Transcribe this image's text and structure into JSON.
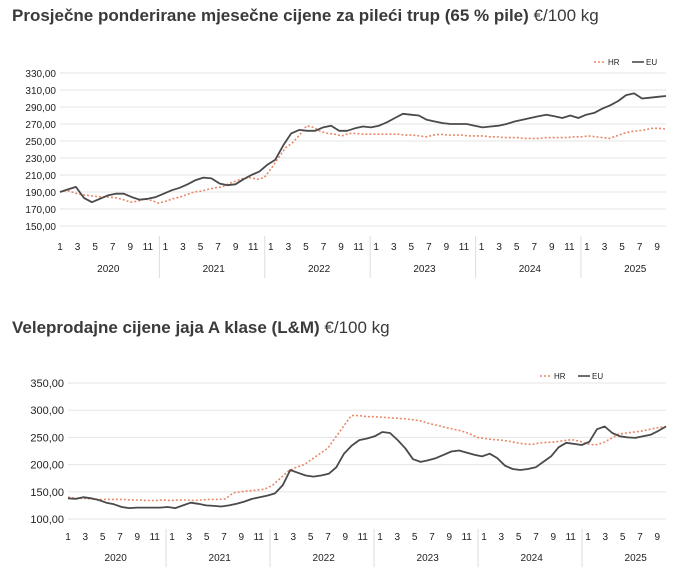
{
  "charts_meta": [
    {
      "title_bold": "Prosječne ponderirane mjesečne cijene za pileći trup (65 % pile)",
      "title_unit": "€/100 kg"
    },
    {
      "title_bold": "Veleprodajne cijene jaja A klase (L&M)",
      "title_unit": "€/100 kg"
    }
  ],
  "colors": {
    "hr": "#e8896a",
    "eu": "#4a4a4a",
    "grid": "#e6e6e6"
  },
  "chart_data": [
    {
      "type": "line",
      "title": "Prosječne ponderirane mjesečne cijene za pileći trup (65 % pile) €/100 kg",
      "ylim": [
        150,
        330
      ],
      "yticks": [
        "150,00",
        "170,00",
        "190,00",
        "210,00",
        "230,00",
        "250,00",
        "270,00",
        "290,00",
        "310,00",
        "330,00"
      ],
      "month_ticks": [
        "1",
        "3",
        "5",
        "7",
        "9",
        "11",
        "1",
        "3",
        "5",
        "7",
        "9",
        "11",
        "1",
        "3",
        "5",
        "7",
        "9",
        "11",
        "1",
        "3",
        "5",
        "7",
        "9",
        "11",
        "1",
        "3",
        "5",
        "7",
        "9",
        "11",
        "1",
        "3",
        "5",
        "7",
        "9"
      ],
      "years": [
        "2020",
        "2021",
        "2022",
        "2023",
        "2024",
        "2025"
      ],
      "legend": [
        "HR",
        "EU"
      ],
      "legend_position": "top-right",
      "series": [
        {
          "name": "HR",
          "style": "dotted",
          "values": [
            190,
            192,
            189,
            187,
            186,
            185,
            184,
            184,
            183,
            181,
            178,
            179,
            182,
            180,
            177,
            179,
            182,
            184,
            187,
            190,
            191,
            193,
            195,
            196,
            200,
            203,
            206,
            207,
            205,
            207,
            218,
            230,
            242,
            248,
            257,
            268,
            266,
            261,
            259,
            258,
            256,
            259,
            259,
            258,
            258,
            258,
            258,
            258,
            258,
            257,
            257,
            256,
            255,
            257,
            258,
            257,
            257,
            257,
            256,
            256,
            256,
            255,
            255,
            254,
            254,
            254,
            253,
            253,
            253,
            254,
            254,
            254,
            254,
            255,
            255,
            256,
            255,
            254,
            253,
            256,
            259,
            261,
            262,
            263,
            265,
            265,
            264
          ]
        },
        {
          "name": "EU",
          "style": "solid",
          "values": [
            190,
            193,
            196,
            183,
            178,
            182,
            186,
            188,
            188,
            184,
            181,
            182,
            184,
            188,
            192,
            195,
            199,
            204,
            207,
            206,
            200,
            198,
            199,
            205,
            210,
            214,
            222,
            228,
            245,
            259,
            263,
            262,
            262,
            266,
            268,
            262,
            262,
            265,
            267,
            266,
            268,
            272,
            277,
            282,
            281,
            280,
            275,
            273,
            271,
            270,
            270,
            270,
            268,
            266,
            267,
            268,
            270,
            273,
            275,
            277,
            279,
            281,
            279,
            277,
            280,
            277,
            281,
            283,
            288,
            292,
            297,
            304,
            306,
            300,
            301,
            302,
            303
          ]
        }
      ]
    },
    {
      "type": "line",
      "title": "Veleprodajne cijene jaja A klase (L&M) €/100 kg",
      "ylim": [
        100,
        350
      ],
      "yticks": [
        "100,00",
        "150,00",
        "200,00",
        "250,00",
        "300,00",
        "350,00"
      ],
      "month_ticks": [
        "1",
        "3",
        "5",
        "7",
        "9",
        "11",
        "1",
        "3",
        "5",
        "7",
        "9",
        "11",
        "1",
        "3",
        "5",
        "7",
        "9",
        "11",
        "1",
        "3",
        "5",
        "7",
        "9",
        "11",
        "1",
        "3",
        "5",
        "7",
        "9",
        "11",
        "1",
        "3",
        "5",
        "7",
        "9"
      ],
      "years": [
        "2020",
        "2021",
        "2022",
        "2023",
        "2024",
        "2025"
      ],
      "legend": [
        "HR",
        "EU"
      ],
      "legend_position": "top-right",
      "series": [
        {
          "name": "HR",
          "style": "dotted",
          "values": [
            140,
            138,
            138,
            137,
            136,
            136,
            136,
            136,
            135,
            135,
            134,
            134,
            135,
            134,
            135,
            135,
            134,
            135,
            136,
            136,
            137,
            148,
            150,
            152,
            153,
            155,
            162,
            175,
            188,
            195,
            200,
            210,
            220,
            230,
            250,
            270,
            290,
            290,
            288,
            288,
            287,
            286,
            285,
            284,
            282,
            280,
            275,
            272,
            268,
            265,
            262,
            257,
            250,
            248,
            246,
            245,
            243,
            240,
            238,
            237,
            240,
            241,
            242,
            244,
            246,
            243,
            238,
            236,
            240,
            248,
            256,
            258,
            260,
            262,
            265,
            268,
            270
          ]
        },
        {
          "name": "EU",
          "style": "solid",
          "values": [
            138,
            137,
            140,
            138,
            135,
            130,
            127,
            122,
            120,
            121,
            121,
            121,
            121,
            122,
            120,
            125,
            130,
            128,
            125,
            124,
            123,
            125,
            128,
            132,
            137,
            140,
            143,
            147,
            162,
            190,
            185,
            180,
            178,
            180,
            183,
            195,
            220,
            235,
            245,
            248,
            252,
            260,
            258,
            245,
            230,
            210,
            205,
            208,
            212,
            218,
            224,
            226,
            222,
            218,
            215,
            220,
            212,
            198,
            192,
            190,
            192,
            195,
            205,
            215,
            232,
            240,
            238,
            236,
            242,
            265,
            270,
            258,
            252,
            250,
            249,
            252,
            255,
            262,
            270
          ]
        }
      ]
    }
  ]
}
